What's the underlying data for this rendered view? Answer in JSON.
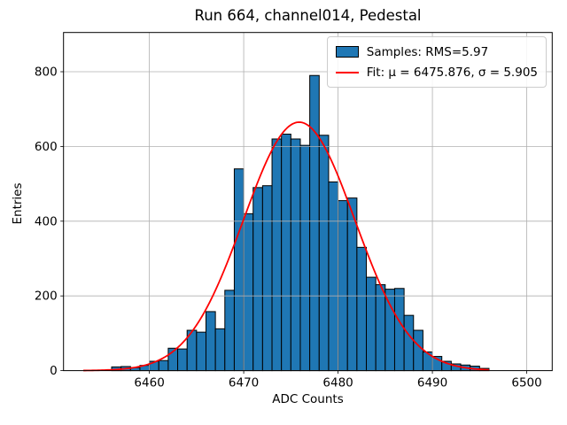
{
  "figure": {
    "title": "Run 664, channel014, Pedestal",
    "xlabel": "ADC Counts",
    "ylabel": "Entries",
    "background": "#ffffff"
  },
  "legend": {
    "position": "upper right",
    "items": [
      {
        "type": "patch",
        "color": "#1f77b4",
        "edge": "#000000",
        "label": "Samples: RMS=5.97"
      },
      {
        "type": "line",
        "color": "#ff0000",
        "label": "Fit: μ = 6475.876, σ = 5.905"
      }
    ]
  },
  "chart_data": {
    "type": "bar",
    "subtype": "histogram",
    "title": "Run 664, channel014, Pedestal",
    "xlabel": "ADC Counts",
    "ylabel": "Entries",
    "bar_color": "#1f77b4",
    "bar_edge_color": "#000000",
    "grid": true,
    "grid_color": "#b0b0b0",
    "legend_position": "upper right",
    "rms": 5.97,
    "bin_width": 1,
    "bin_left_edges": [
      6456,
      6457,
      6458,
      6459,
      6460,
      6461,
      6462,
      6463,
      6464,
      6465,
      6466,
      6467,
      6468,
      6469,
      6470,
      6471,
      6472,
      6473,
      6474,
      6475,
      6476,
      6477,
      6478,
      6479,
      6480,
      6481,
      6482,
      6483,
      6484,
      6485,
      6486,
      6487,
      6488,
      6489,
      6490,
      6491,
      6492,
      6493,
      6494,
      6495
    ],
    "counts": [
      10,
      11,
      8,
      14,
      25,
      27,
      60,
      58,
      108,
      103,
      158,
      112,
      215,
      540,
      420,
      490,
      495,
      620,
      633,
      620,
      603,
      790,
      630,
      505,
      455,
      462,
      330,
      250,
      230,
      218,
      220,
      148,
      108,
      50,
      38,
      25,
      18,
      15,
      12,
      6
    ],
    "fit": {
      "type": "gaussian",
      "mu": 6475.876,
      "sigma": 5.905,
      "amplitude": 665,
      "color": "#ff0000",
      "x_range": [
        6453,
        6496
      ]
    },
    "xlim": [
      6450.9,
      6502.7
    ],
    "ylim": [
      0,
      905
    ],
    "xticks": [
      6460,
      6470,
      6480,
      6490,
      6500
    ],
    "yticks": [
      0,
      200,
      400,
      600,
      800
    ]
  }
}
